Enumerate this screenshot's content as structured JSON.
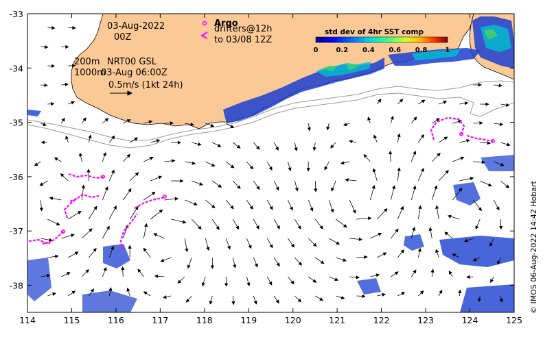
{
  "map": {
    "date_label": "03-Aug-2022",
    "time_label": "00Z",
    "contour_label_1": "200m",
    "contour_label_2": "1000m",
    "product_label": "NRT00 GSL",
    "product_time": "03-Aug 06:00Z",
    "velocity_scale": "0.5m/s (1kt 24h)",
    "legend_argo": "Argo",
    "legend_drifters": "drifters@12h",
    "legend_drifters_to": "to 03/08 12Z",
    "credit": "© IMOS 06-Aug-2022 14:42 Hobart",
    "x_ticks": [
      "114",
      "115",
      "116",
      "117",
      "118",
      "119",
      "120",
      "121",
      "122",
      "123",
      "124",
      "125"
    ],
    "y_ticks": [
      "-33",
      "-34",
      "-35",
      "-36",
      "-37",
      "-38"
    ],
    "colorbar": {
      "title": "std dev of 4hr SST comp",
      "ticks": [
        "0",
        "0.2",
        "0.4",
        "0.6",
        "0.8",
        "1"
      ]
    },
    "colors": {
      "land": "#fbc996",
      "drifter": "#ff00ff",
      "arrow": "#000000",
      "contour": "#999999"
    }
  }
}
